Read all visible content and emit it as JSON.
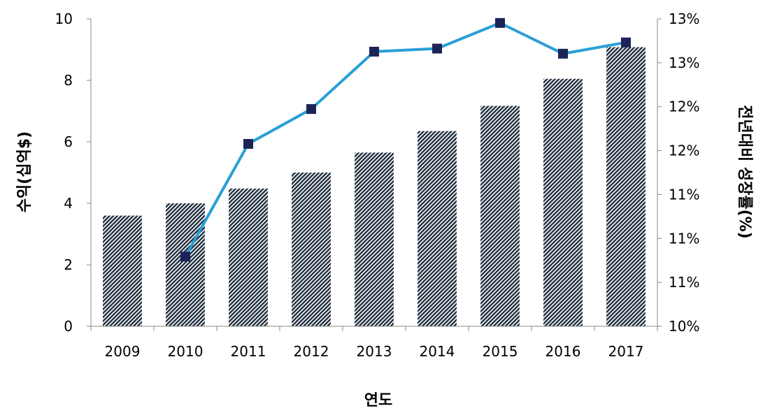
{
  "chart_data": {
    "type": "bar+line",
    "categories": [
      "2009",
      "2010",
      "2011",
      "2012",
      "2013",
      "2014",
      "2015",
      "2016",
      "2017"
    ],
    "series": [
      {
        "type": "bar",
        "axis": "left",
        "values": [
          3.6,
          4.0,
          4.48,
          5.0,
          5.65,
          6.35,
          7.17,
          8.05,
          9.08
        ],
        "pattern": "diagonal-hatch",
        "color": "#1f2d3d"
      },
      {
        "type": "line",
        "axis": "right",
        "values": [
          null,
          10.68,
          11.78,
          12.12,
          12.68,
          12.71,
          12.96,
          12.66,
          12.77
        ],
        "color": "#2a9fd6",
        "marker_color": "#1c2457"
      }
    ],
    "xlabel": "연도",
    "ylabel_left": "수익(십억$)",
    "ylabel_right": "전년대비 성장률(%)",
    "ylim_left": [
      0,
      10
    ],
    "yticks_left": [
      "0",
      "2",
      "4",
      "6",
      "8",
      "10"
    ],
    "ylim_right": [
      10,
      13
    ],
    "yticks_right": [
      "10%",
      "11%",
      "11%",
      "11%",
      "12%",
      "12%",
      "13%",
      "13%"
    ],
    "grid": false,
    "legend": "none"
  }
}
